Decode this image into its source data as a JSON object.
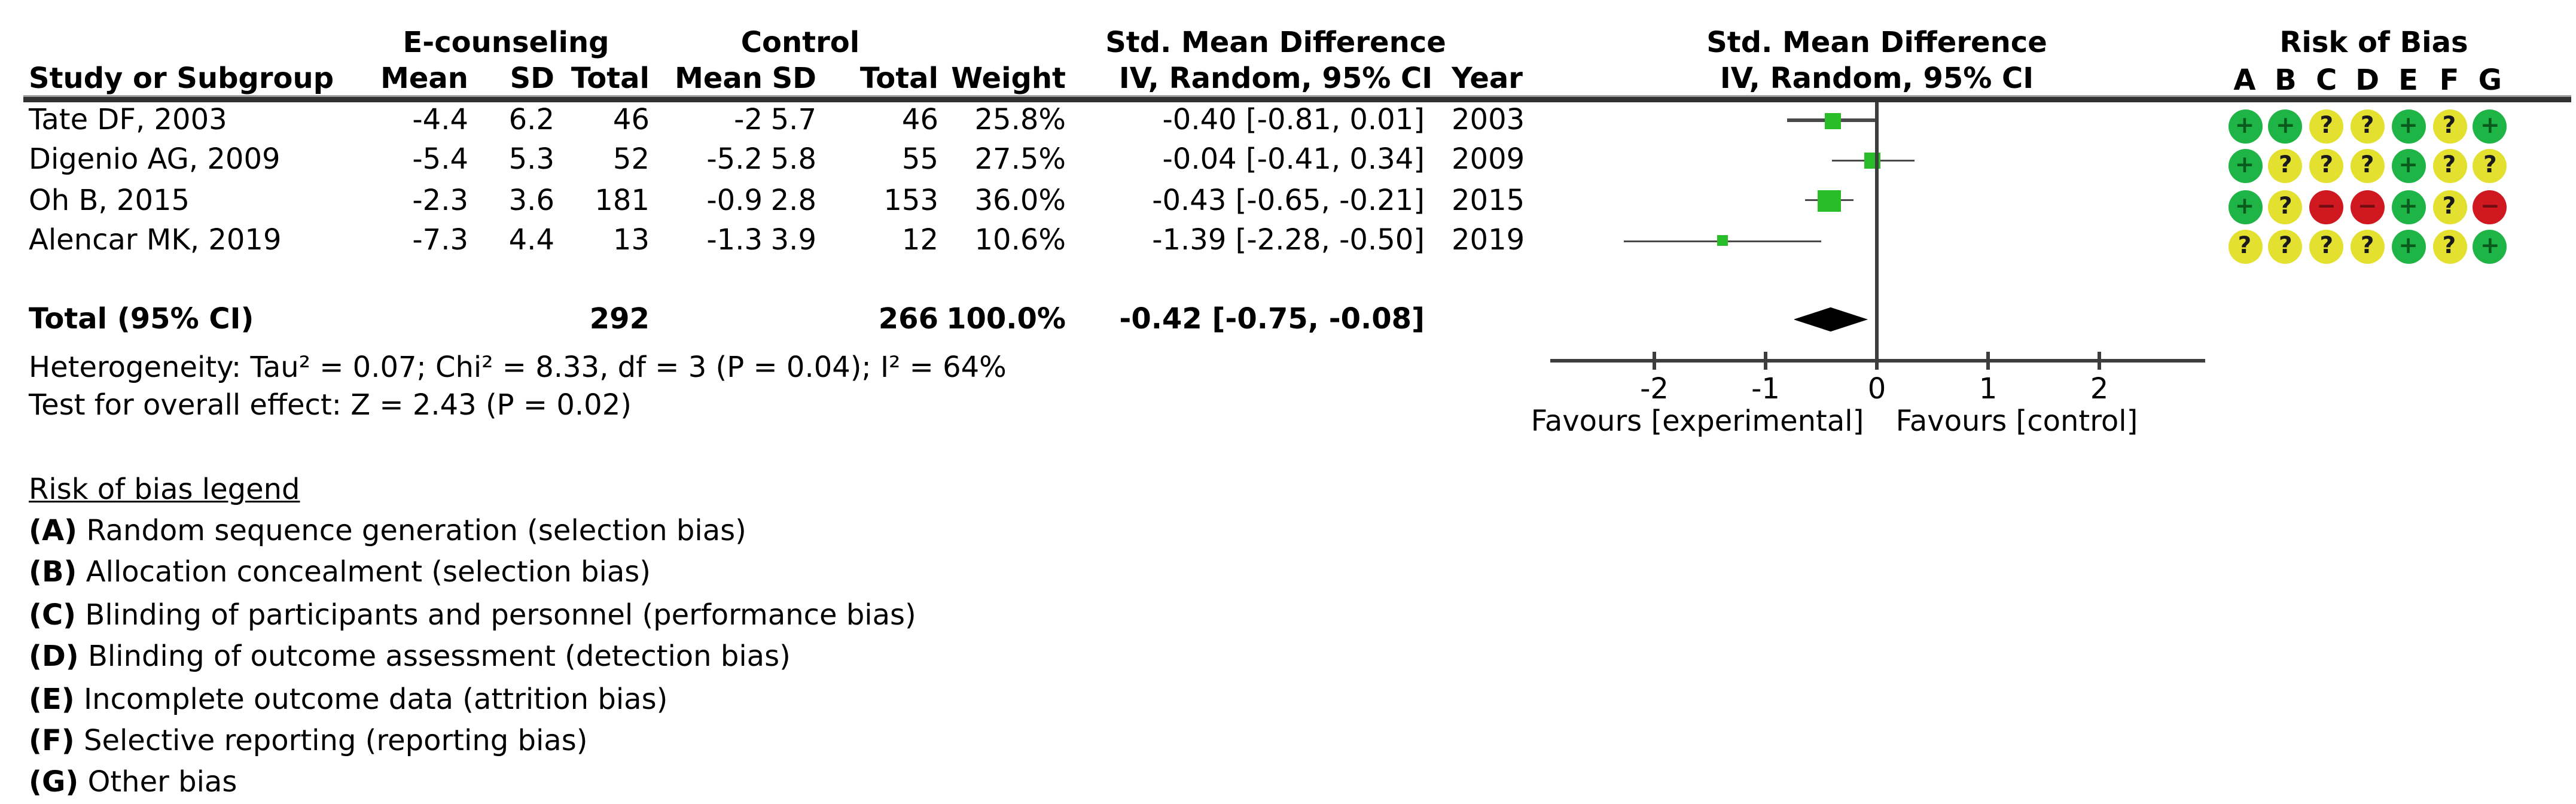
{
  "header": {
    "group_experimental": "E-counseling",
    "group_control": "Control",
    "smd_col_title": "Std. Mean Difference",
    "smd_plot_title": "Std. Mean Difference",
    "rob_title": "Risk of Bias",
    "col_study": "Study or Subgroup",
    "col_mean_exp": "Mean",
    "col_sd_exp": "SD",
    "col_total_exp": "Total",
    "col_mean_ctl": "Mean",
    "col_sd_ctl": "SD",
    "col_total_ctl": "Total",
    "col_weight": "Weight",
    "col_ci": "IV, Random, 95% CI",
    "col_year": "Year",
    "plot_ci_subtitle": "IV, Random, 95% CI",
    "rob_letters": [
      "A",
      "B",
      "C",
      "D",
      "E",
      "F",
      "G"
    ]
  },
  "chart_data": {
    "type": "forest",
    "effect_measure": "Std. Mean Difference",
    "method": "IV, Random, 95% CI",
    "x_axis": {
      "ticks": [
        -2,
        -1,
        0,
        1,
        2
      ],
      "min": -2.95,
      "max": 2.95,
      "favours_left": "Favours [experimental]",
      "favours_right": "Favours [control]"
    },
    "studies": [
      {
        "name": "Tate DF, 2003",
        "exp_mean": "-4.4",
        "exp_sd": "6.2",
        "exp_total": "46",
        "ctl_mean": "-2",
        "ctl_sd": "5.7",
        "ctl_total": "46",
        "weight": "25.8%",
        "weight_pct": 25.8,
        "ci_text": "-0.40 [-0.81, 0.01]",
        "year": "2003",
        "smd": -0.4,
        "ci_low": -0.81,
        "ci_high": 0.01,
        "rob": [
          "low",
          "low",
          "unclear",
          "unclear",
          "low",
          "unclear",
          "low"
        ]
      },
      {
        "name": "Digenio AG, 2009",
        "exp_mean": "-5.4",
        "exp_sd": "5.3",
        "exp_total": "52",
        "ctl_mean": "-5.2",
        "ctl_sd": "5.8",
        "ctl_total": "55",
        "weight": "27.5%",
        "weight_pct": 27.5,
        "ci_text": "-0.04 [-0.41, 0.34]",
        "year": "2009",
        "smd": -0.04,
        "ci_low": -0.41,
        "ci_high": 0.34,
        "rob": [
          "low",
          "unclear",
          "unclear",
          "unclear",
          "low",
          "unclear",
          "unclear"
        ]
      },
      {
        "name": "Oh B, 2015",
        "exp_mean": "-2.3",
        "exp_sd": "3.6",
        "exp_total": "181",
        "ctl_mean": "-0.9",
        "ctl_sd": "2.8",
        "ctl_total": "153",
        "weight": "36.0%",
        "weight_pct": 36.0,
        "ci_text": "-0.43 [-0.65, -0.21]",
        "year": "2015",
        "smd": -0.43,
        "ci_low": -0.65,
        "ci_high": -0.21,
        "rob": [
          "low",
          "unclear",
          "high",
          "high",
          "low",
          "unclear",
          "high"
        ]
      },
      {
        "name": "Alencar MK, 2019",
        "exp_mean": "-7.3",
        "exp_sd": "4.4",
        "exp_total": "13",
        "ctl_mean": "-1.3",
        "ctl_sd": "3.9",
        "ctl_total": "12",
        "weight": "10.6%",
        "weight_pct": 10.6,
        "ci_text": "-1.39 [-2.28, -0.50]",
        "year": "2019",
        "smd": -1.39,
        "ci_low": -2.28,
        "ci_high": -0.5,
        "rob": [
          "unclear",
          "unclear",
          "unclear",
          "unclear",
          "low",
          "unclear",
          "low"
        ]
      }
    ],
    "total": {
      "label": "Total (95% CI)",
      "exp_total": "292",
      "ctl_total": "266",
      "weight": "100.0%",
      "ci_text": "-0.42 [-0.75, -0.08]",
      "smd": -0.42,
      "ci_low": -0.75,
      "ci_high": -0.08
    },
    "heterogeneity": "Heterogeneity: Tau² = 0.07; Chi² = 8.33, df = 3 (P = 0.04); I² = 64%",
    "overall_effect": "Test for overall effect: Z = 2.43 (P = 0.02)"
  },
  "legend": {
    "title": "Risk of bias legend",
    "items": [
      {
        "label": "(A)",
        "text": "Random sequence generation (selection bias)"
      },
      {
        "label": "(B)",
        "text": "Allocation concealment (selection bias)"
      },
      {
        "label": "(C)",
        "text": "Blinding of participants and personnel (performance bias)"
      },
      {
        "label": "(D)",
        "text": "Blinding of outcome assessment (detection bias)"
      },
      {
        "label": "(E)",
        "text": "Incomplete outcome data (attrition bias)"
      },
      {
        "label": "(F)",
        "text": "Selective reporting (reporting bias)"
      },
      {
        "label": "(G)",
        "text": "Other bias"
      }
    ]
  },
  "rob_symbols": {
    "low": "+",
    "unclear": "?",
    "high": "−"
  },
  "colors": {
    "rob_low": "#1EB446",
    "rob_unclear": "#E4E02F",
    "rob_high": "#D01820",
    "rob_low_symbol": "#0A5A1E",
    "rob_unclear_symbol": "#1a1a1a",
    "rob_high_symbol": "#700D12",
    "square": "#2ABD2A",
    "ci_line": "#4a4a4a",
    "axis_line": "#3d3d3d",
    "diamond": "#000000"
  }
}
